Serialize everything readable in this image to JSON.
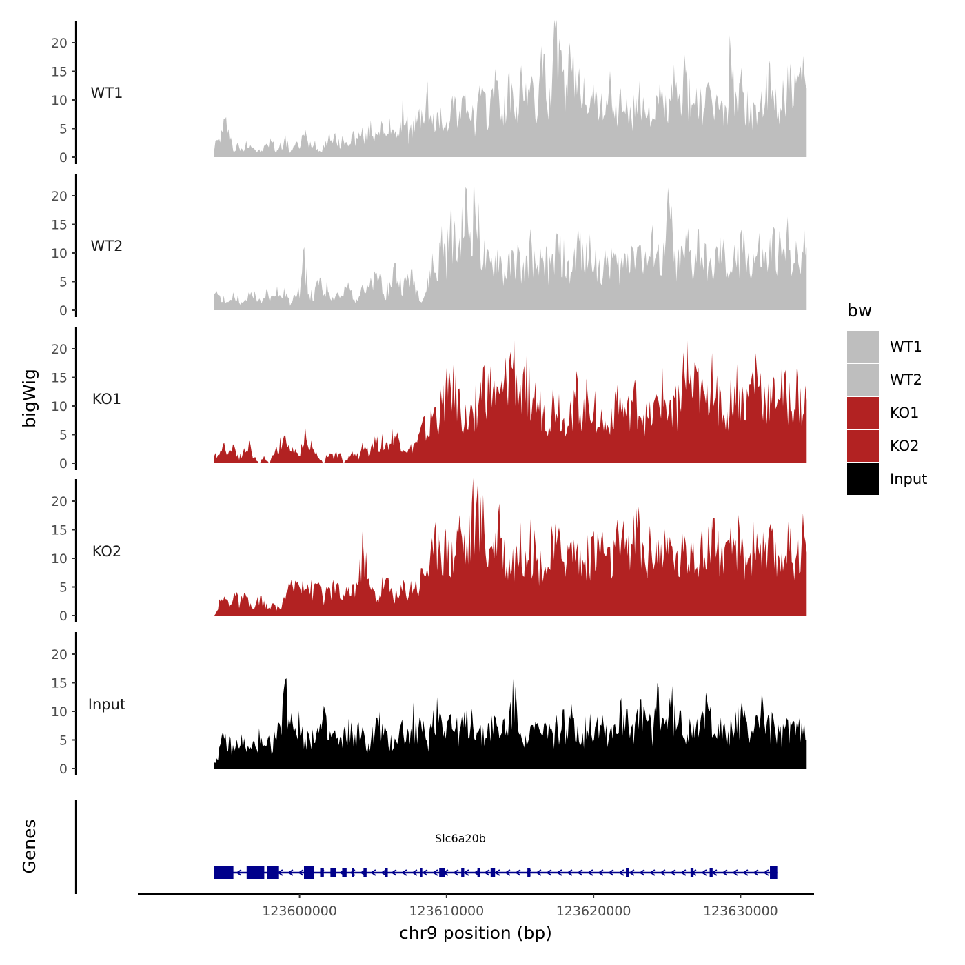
{
  "chart_data": {
    "type": "area",
    "ylabel": "bigWig",
    "xlabel": "chr9 position (bp)",
    "ylim": [
      0,
      24
    ],
    "xlim": [
      123589000,
      123635000
    ],
    "y_ticks": [
      0,
      5,
      10,
      15,
      20
    ],
    "x_ticks": [
      123600000,
      123610000,
      123620000,
      123630000
    ],
    "x_tick_labels": [
      "123600000",
      "123610000",
      "123620000",
      "123630000"
    ],
    "data_range": [
      123594200,
      123634500
    ],
    "legend": {
      "title": "bw",
      "position": "right",
      "entries": [
        {
          "label": "WT1",
          "color": "#bebebe"
        },
        {
          "label": "WT2",
          "color": "#bebebe"
        },
        {
          "label": "KO1",
          "color": "#b22222"
        },
        {
          "label": "KO2",
          "color": "#b22222"
        },
        {
          "label": "Input",
          "color": "#000000"
        }
      ]
    },
    "series": [
      {
        "name": "WT1",
        "color": "#bebebe",
        "values": [
          2,
          3,
          5,
          6,
          1,
          2,
          1,
          3,
          2,
          1,
          1,
          2,
          3,
          1,
          2,
          3,
          1,
          2,
          2,
          4,
          2,
          3,
          1,
          2,
          3,
          4,
          2,
          3,
          2,
          4,
          3,
          4,
          3,
          5,
          4,
          6,
          3,
          5,
          6,
          3,
          9,
          4,
          5,
          6,
          8,
          10,
          5,
          7,
          6,
          7,
          8,
          10,
          6,
          11,
          7,
          6,
          10,
          8,
          7,
          15,
          9,
          8,
          11,
          10,
          9,
          12,
          13,
          10,
          9,
          15,
          12,
          11,
          22,
          14,
          11,
          15,
          13,
          12,
          14,
          11,
          9,
          10,
          8,
          12,
          9,
          7,
          11,
          8,
          6,
          10,
          9,
          8,
          9,
          7,
          10,
          9,
          8,
          12,
          8,
          16,
          10,
          9,
          11,
          8,
          9,
          10,
          9,
          8,
          7,
          18,
          10,
          12,
          9,
          8,
          7,
          10,
          9,
          12,
          10,
          8,
          11,
          13,
          10,
          11,
          13,
          12
        ],
        "spike_positions": [
          14,
          22,
          29,
          37,
          44,
          53,
          60,
          71,
          78,
          84,
          91,
          99,
          104,
          111,
          117,
          121
        ]
      },
      {
        "name": "WT2",
        "color": "#bebebe",
        "values": [
          2,
          3,
          2,
          1,
          3,
          2,
          1,
          2,
          3,
          2,
          1,
          3,
          2,
          4,
          2,
          3,
          1,
          4,
          3,
          9,
          3,
          2,
          5,
          3,
          4,
          2,
          3,
          2,
          4,
          3,
          2,
          5,
          3,
          4,
          5,
          6,
          3,
          4,
          7,
          5,
          4,
          6,
          5,
          3,
          2,
          4,
          8,
          6,
          12,
          9,
          14,
          10,
          11,
          17,
          13,
          19,
          11,
          9,
          7,
          8,
          10,
          6,
          7,
          8,
          9,
          6,
          8,
          11,
          5,
          9,
          8,
          7,
          10,
          11,
          8,
          6,
          9,
          12,
          7,
          10,
          11,
          8,
          6,
          9,
          10,
          7,
          8,
          9,
          11,
          13,
          10,
          8,
          9,
          12,
          8,
          9,
          17,
          10,
          8,
          9,
          11,
          7,
          12,
          9,
          8,
          6,
          9,
          10,
          8,
          7,
          9,
          10,
          12,
          8,
          9,
          10,
          8,
          9,
          11,
          10,
          9,
          12,
          10,
          8,
          9,
          11
        ],
        "spike_positions": [
          20,
          33,
          52,
          55,
          82,
          96,
          103
        ]
      },
      {
        "name": "KO1",
        "color": "#b22222",
        "values": [
          1,
          2,
          3,
          2,
          3,
          1,
          2,
          3,
          1,
          0,
          1,
          0,
          2,
          3,
          4,
          3,
          2,
          1,
          5,
          4,
          2,
          1,
          0,
          2,
          1,
          2,
          0,
          1,
          2,
          1,
          3,
          2,
          4,
          3,
          4,
          3,
          5,
          4,
          3,
          2,
          3,
          4,
          6,
          5,
          9,
          8,
          10,
          15,
          12,
          11,
          8,
          7,
          9,
          11,
          14,
          12,
          13,
          10,
          12,
          15,
          18,
          13,
          11,
          14,
          12,
          10,
          9,
          8,
          10,
          11,
          7,
          9,
          10,
          12,
          8,
          11,
          10,
          9,
          7,
          6,
          10,
          12,
          9,
          8,
          11,
          10,
          9,
          7,
          8,
          10,
          12,
          9,
          11,
          10,
          14,
          16,
          12,
          13,
          11,
          10,
          18,
          12,
          9,
          8,
          12,
          13,
          11,
          10,
          14,
          16,
          12,
          11,
          10,
          13,
          12,
          11,
          10,
          12,
          9,
          11
        ],
        "spike_positions": [
          47,
          53,
          60,
          66,
          100,
          108,
          115
        ]
      },
      {
        "name": "KO2",
        "color": "#b22222",
        "values": [
          0,
          2,
          3,
          2,
          4,
          2,
          3,
          2,
          1,
          3,
          2,
          1,
          2,
          1,
          3,
          4,
          5,
          6,
          7,
          5,
          4,
          6,
          3,
          4,
          5,
          4,
          3,
          4,
          5,
          6,
          12,
          5,
          4,
          3,
          6,
          5,
          4,
          3,
          5,
          4,
          6,
          5,
          8,
          9,
          10,
          15,
          12,
          11,
          10,
          16,
          13,
          12,
          18,
          17,
          16,
          11,
          13,
          14,
          12,
          9,
          10,
          11,
          12,
          13,
          11,
          9,
          10,
          8,
          12,
          11,
          13,
          10,
          12,
          11,
          9,
          10,
          12,
          11,
          13,
          9,
          10,
          12,
          11,
          14,
          12,
          16,
          11,
          10,
          13,
          12,
          10,
          11,
          12,
          9,
          11,
          10,
          14,
          12,
          11,
          10,
          17,
          12,
          11,
          9,
          12,
          13,
          11,
          10,
          12,
          14,
          11,
          10,
          12,
          9,
          11,
          13,
          10,
          12,
          14,
          11
        ],
        "spike_positions": [
          30,
          45,
          52,
          56,
          65,
          100,
          110
        ]
      },
      {
        "name": "Input",
        "color": "#000000",
        "values": [
          1,
          3,
          5,
          4,
          3,
          5,
          4,
          3,
          4,
          5,
          3,
          4,
          5,
          6,
          14,
          10,
          8,
          7,
          6,
          5,
          7,
          6,
          8,
          5,
          6,
          4,
          5,
          7,
          5,
          6,
          5,
          4,
          6,
          8,
          6,
          4,
          5,
          6,
          7,
          5,
          8,
          7,
          6,
          5,
          9,
          10,
          8,
          9,
          7,
          6,
          7,
          8,
          9,
          6,
          5,
          7,
          8,
          6,
          7,
          8,
          11,
          9,
          7,
          5,
          6,
          7,
          5,
          8,
          6,
          7,
          8,
          6,
          9,
          7,
          5,
          8,
          7,
          9,
          8,
          6,
          7,
          8,
          9,
          10,
          7,
          8,
          9,
          8,
          7,
          12,
          8,
          9,
          10,
          7,
          8,
          6,
          9,
          8,
          7,
          10,
          9,
          8,
          6,
          5,
          7,
          8,
          9,
          6,
          7,
          9,
          10,
          8,
          7,
          6,
          5,
          7,
          8,
          6,
          7,
          5
        ],
        "spike_positions": [
          14,
          44,
          60,
          89
        ]
      }
    ],
    "genes_track": {
      "label": "Genes",
      "gene_name": "Slc6a20b",
      "strand": "-",
      "start": 123594200,
      "end": 123632500,
      "exons": [
        [
          123594200,
          123595500
        ],
        [
          123596400,
          123597600
        ],
        [
          123597800,
          123598600
        ],
        [
          123600300,
          123601000
        ],
        [
          123601400,
          123601650
        ],
        [
          123602100,
          123602500
        ],
        [
          123602900,
          123603200
        ],
        [
          123603550,
          123603700
        ],
        [
          123604350,
          123604560
        ],
        [
          123605800,
          123606000
        ],
        [
          123608200,
          123608350
        ],
        [
          123609500,
          123609900
        ],
        [
          123611000,
          123611200
        ],
        [
          123612100,
          123612300
        ],
        [
          123613000,
          123613300
        ],
        [
          123615500,
          123615700
        ],
        [
          123622200,
          123622400
        ],
        [
          123626600,
          123626800
        ],
        [
          123627900,
          123628100
        ],
        [
          123632000,
          123632500
        ]
      ]
    }
  }
}
